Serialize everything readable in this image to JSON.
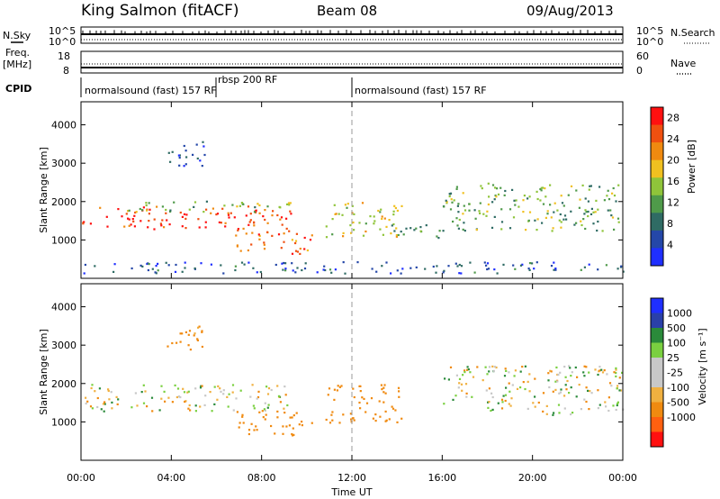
{
  "header": {
    "station": "King Salmon (fitACF)",
    "beam": "Beam 08",
    "date": "09/Aug/2013"
  },
  "strips": {
    "nsky_label": "N.Sky",
    "nsky_top": "10^5",
    "nsky_bottom": "10^0",
    "nsearch_label": "N.Search",
    "nsearch_top": "10^5",
    "nsearch_bottom": "10^0",
    "freq_label": "Freq.",
    "freq_unit": "[MHz]",
    "freq_top": "18",
    "freq_bottom": "8",
    "nave_label": "Nave",
    "nave_top": "60",
    "nave_bottom": "0",
    "cpid_label": "CPID",
    "cpid_segments": [
      {
        "label": "normalsound (fast) 157 RF",
        "start": 0,
        "end": 6
      },
      {
        "label": "rbsp 200 RF",
        "start": 6,
        "end": 12
      },
      {
        "label": "normalsound (fast) 157 RF",
        "start": 12,
        "end": 24
      }
    ]
  },
  "colors": {
    "power_scale": [
      "#1f2fff",
      "#2447a8",
      "#2f6b64",
      "#4f9a4a",
      "#8fc43a",
      "#f0c020",
      "#f08a10",
      "#f05010",
      "#ff1010"
    ],
    "velocity_scale": [
      "#ff1010",
      "#ff6010",
      "#f08a10",
      "#f0b040",
      "#c8c8c8",
      "#c8c8c8",
      "#7ad040",
      "#2a8a3a",
      "#2a40a8",
      "#1f2fff"
    ]
  },
  "chart_data": [
    {
      "type": "heatmap",
      "title": "",
      "xlabel": "Time UT",
      "ylabel": "Slant Range [km]",
      "colorbar_label": "Power [dB]",
      "colorbar_ticks": [
        "4",
        "8",
        "12",
        "16",
        "20",
        "24",
        "28"
      ],
      "colorbar_range": [
        0,
        30
      ],
      "xlim": [
        0,
        24
      ],
      "ylim": [
        0,
        4600
      ],
      "x_ticks": [
        "00:00",
        "04:00",
        "08:00",
        "12:00",
        "16:00",
        "20:00",
        "00:00"
      ],
      "y_ticks": [
        "1000",
        "2000",
        "3000",
        "4000"
      ],
      "scatter_regions": [
        {
          "t0": 0.0,
          "t1": 9.3,
          "r0": 1300,
          "r1": 1900,
          "power": 26
        },
        {
          "t0": 2.0,
          "t1": 9.3,
          "r0": 1750,
          "r1": 2050,
          "power": 14
        },
        {
          "t0": 3.8,
          "t1": 5.5,
          "r0": 2900,
          "r1": 3600,
          "power": 5
        },
        {
          "t0": 6.8,
          "t1": 10.2,
          "r0": 650,
          "r1": 1300,
          "power": 24
        },
        {
          "t0": 10.8,
          "t1": 14.2,
          "r0": 1100,
          "r1": 2000,
          "power": 16
        },
        {
          "t0": 13.6,
          "t1": 16.0,
          "r0": 1050,
          "r1": 1450,
          "power": 12
        },
        {
          "t0": 16.0,
          "t1": 24.0,
          "r0": 1250,
          "r1": 2500,
          "power": 13
        },
        {
          "t0": 0.0,
          "t1": 24.0,
          "r0": 150,
          "r1": 450,
          "power": 6
        }
      ]
    },
    {
      "type": "heatmap",
      "title": "",
      "xlabel": "Time UT",
      "ylabel": "Slant Range [km]",
      "colorbar_label": "Velocity [m s⁻¹]",
      "colorbar_ticks": [
        "1000",
        "500",
        "100",
        "25",
        "-25",
        "-100",
        "-500",
        "-1000"
      ],
      "xlim": [
        0,
        24
      ],
      "ylim": [
        0,
        4600
      ],
      "x_ticks": [
        "00:00",
        "04:00",
        "08:00",
        "12:00",
        "16:00",
        "20:00",
        "00:00"
      ],
      "y_ticks": [
        "1000",
        "2000",
        "3000",
        "4000"
      ],
      "scatter_regions": [
        {
          "t0": 0.0,
          "t1": 9.3,
          "r0": 1300,
          "r1": 2000,
          "velocity": 0
        },
        {
          "t0": 3.8,
          "t1": 5.5,
          "r0": 2900,
          "r1": 3600,
          "velocity": -200
        },
        {
          "t0": 6.8,
          "t1": 10.2,
          "r0": 650,
          "r1": 1300,
          "velocity": -300
        },
        {
          "t0": 10.8,
          "t1": 14.2,
          "r0": 1000,
          "r1": 2000,
          "velocity": -300
        },
        {
          "t0": 16.0,
          "t1": 24.0,
          "r0": 1200,
          "r1": 2500,
          "velocity": 0
        }
      ]
    }
  ]
}
